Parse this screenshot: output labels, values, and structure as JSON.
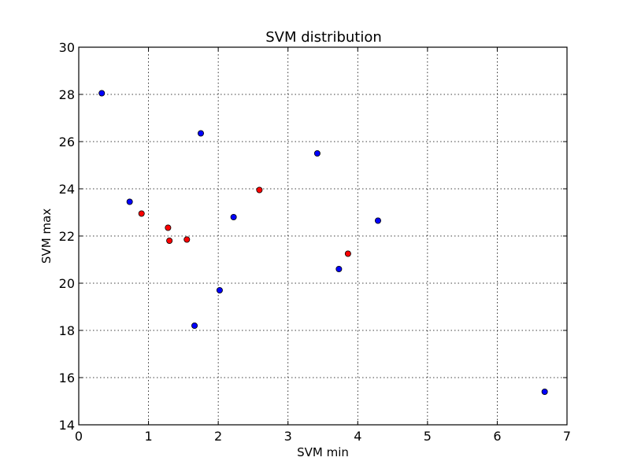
{
  "chart_data": {
    "type": "scatter",
    "title": "SVM distribution",
    "xlabel": "SVM min",
    "ylabel": "SVM max",
    "xlim": [
      0,
      7
    ],
    "ylim": [
      14,
      30
    ],
    "xticks": [
      "0",
      "1",
      "2",
      "3",
      "4",
      "5",
      "6",
      "7"
    ],
    "yticks": [
      "14",
      "16",
      "18",
      "20",
      "22",
      "24",
      "26",
      "28",
      "30"
    ],
    "grid": true,
    "series": [
      {
        "color": "#0000ff",
        "points": [
          {
            "x": 0.33,
            "y": 28.05
          },
          {
            "x": 0.73,
            "y": 23.45
          },
          {
            "x": 1.75,
            "y": 26.35
          },
          {
            "x": 2.22,
            "y": 22.8
          },
          {
            "x": 2.02,
            "y": 19.7
          },
          {
            "x": 1.66,
            "y": 18.2
          },
          {
            "x": 3.42,
            "y": 25.5
          },
          {
            "x": 3.73,
            "y": 20.6
          },
          {
            "x": 4.29,
            "y": 22.65
          },
          {
            "x": 6.68,
            "y": 15.4
          }
        ]
      },
      {
        "color": "#ff0000",
        "points": [
          {
            "x": 0.9,
            "y": 22.95
          },
          {
            "x": 1.28,
            "y": 22.35
          },
          {
            "x": 1.3,
            "y": 21.8
          },
          {
            "x": 1.55,
            "y": 21.85
          },
          {
            "x": 2.59,
            "y": 23.95
          },
          {
            "x": 3.86,
            "y": 21.25
          }
        ]
      }
    ]
  }
}
